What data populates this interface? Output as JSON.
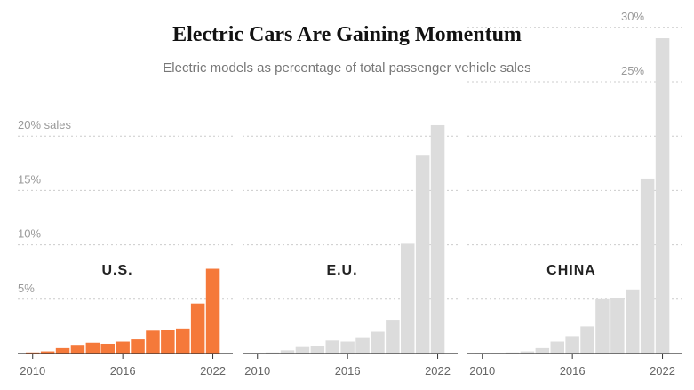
{
  "title": "Electric Cars Are Gaining Momentum",
  "subtitle": "Electric models as percentage of total passenger vehicle sales",
  "colors": {
    "highlight": "#f5793a",
    "muted": "#dcdcdc",
    "grid": "#cccccc",
    "axis": "#333333"
  },
  "chart_data": [
    {
      "type": "bar",
      "panel": "U.S.",
      "x": [
        2010,
        2011,
        2012,
        2013,
        2014,
        2015,
        2016,
        2017,
        2018,
        2019,
        2020,
        2021,
        2022
      ],
      "values": [
        0.1,
        0.2,
        0.5,
        0.8,
        1.0,
        0.9,
        1.1,
        1.3,
        2.1,
        2.2,
        2.3,
        4.6,
        7.8
      ],
      "x_tick_labels": [
        "2010",
        "2016",
        "2022"
      ],
      "y_tick_labels": [
        "5%",
        "10%",
        "15%",
        "20% sales"
      ],
      "ylim": [
        0,
        30
      ],
      "color": "#f5793a"
    },
    {
      "type": "bar",
      "panel": "E.U.",
      "x": [
        2010,
        2011,
        2012,
        2013,
        2014,
        2015,
        2016,
        2017,
        2018,
        2019,
        2020,
        2021,
        2022
      ],
      "values": [
        0.05,
        0.1,
        0.3,
        0.6,
        0.7,
        1.2,
        1.1,
        1.5,
        2.0,
        3.1,
        10.1,
        18.2,
        21.0
      ],
      "x_tick_labels": [
        "2010",
        "2016",
        "2022"
      ],
      "ylim": [
        0,
        30
      ],
      "color": "#dcdcdc"
    },
    {
      "type": "bar",
      "panel": "CHINA",
      "x": [
        2010,
        2011,
        2012,
        2013,
        2014,
        2015,
        2016,
        2017,
        2018,
        2019,
        2020,
        2021,
        2022
      ],
      "values": [
        0.05,
        0.05,
        0.1,
        0.2,
        0.5,
        1.1,
        1.6,
        2.5,
        5.0,
        5.1,
        5.9,
        16.1,
        29.0
      ],
      "x_tick_labels": [
        "2010",
        "2016",
        "2022"
      ],
      "y_tick_labels": [
        "25%",
        "30%"
      ],
      "ylim": [
        0,
        30
      ],
      "color": "#dcdcdc"
    }
  ]
}
